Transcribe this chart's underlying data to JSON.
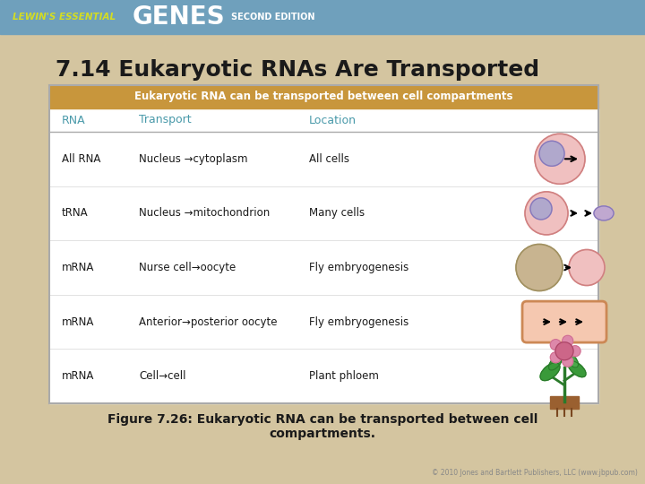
{
  "fig_width": 7.2,
  "fig_height": 5.4,
  "dpi": 100,
  "bg_color": "#d4c5a0",
  "header_bar_color": "#6fa0bc",
  "title_text": "7.14 Eukaryotic RNAs Are Transported",
  "title_fontsize": 18,
  "title_color": "#1a1a1a",
  "table_header_bg": "#c8963c",
  "table_header_text": "Eukaryotic RNA can be transported between cell compartments",
  "table_header_color": "#ffffff",
  "col_header_color": "#4a9aaa",
  "col_headers": [
    "RNA",
    "Transport",
    "Location"
  ],
  "rows": [
    [
      "All RNA",
      "Nucleus →cytoplasm",
      "All cells"
    ],
    [
      "tRNA",
      "Nucleus →mitochondrion",
      "Many cells"
    ],
    [
      "mRNA",
      "Nurse cell→oocyte",
      "Fly embryogenesis"
    ],
    [
      "mRNA",
      "Anterior→posterior oocyte",
      "Fly embryogenesis"
    ],
    [
      "mRNA",
      "Cell→cell",
      "Plant phloem"
    ]
  ],
  "caption_line1": "Figure 7.26: Eukaryotic RNA can be transported between cell",
  "caption_line2": "compartments.",
  "copyright_text": "© 2010 Jones and Bartlett Publishers, LLC (www.jbpub.com)",
  "table_border_color": "#aaaaaa",
  "table_bg": "#ffffff",
  "row_text_color": "#1a1a1a",
  "caption_color": "#1a1a1a",
  "lewin_yellow": "#d4dd22",
  "header_white": "#ffffff"
}
